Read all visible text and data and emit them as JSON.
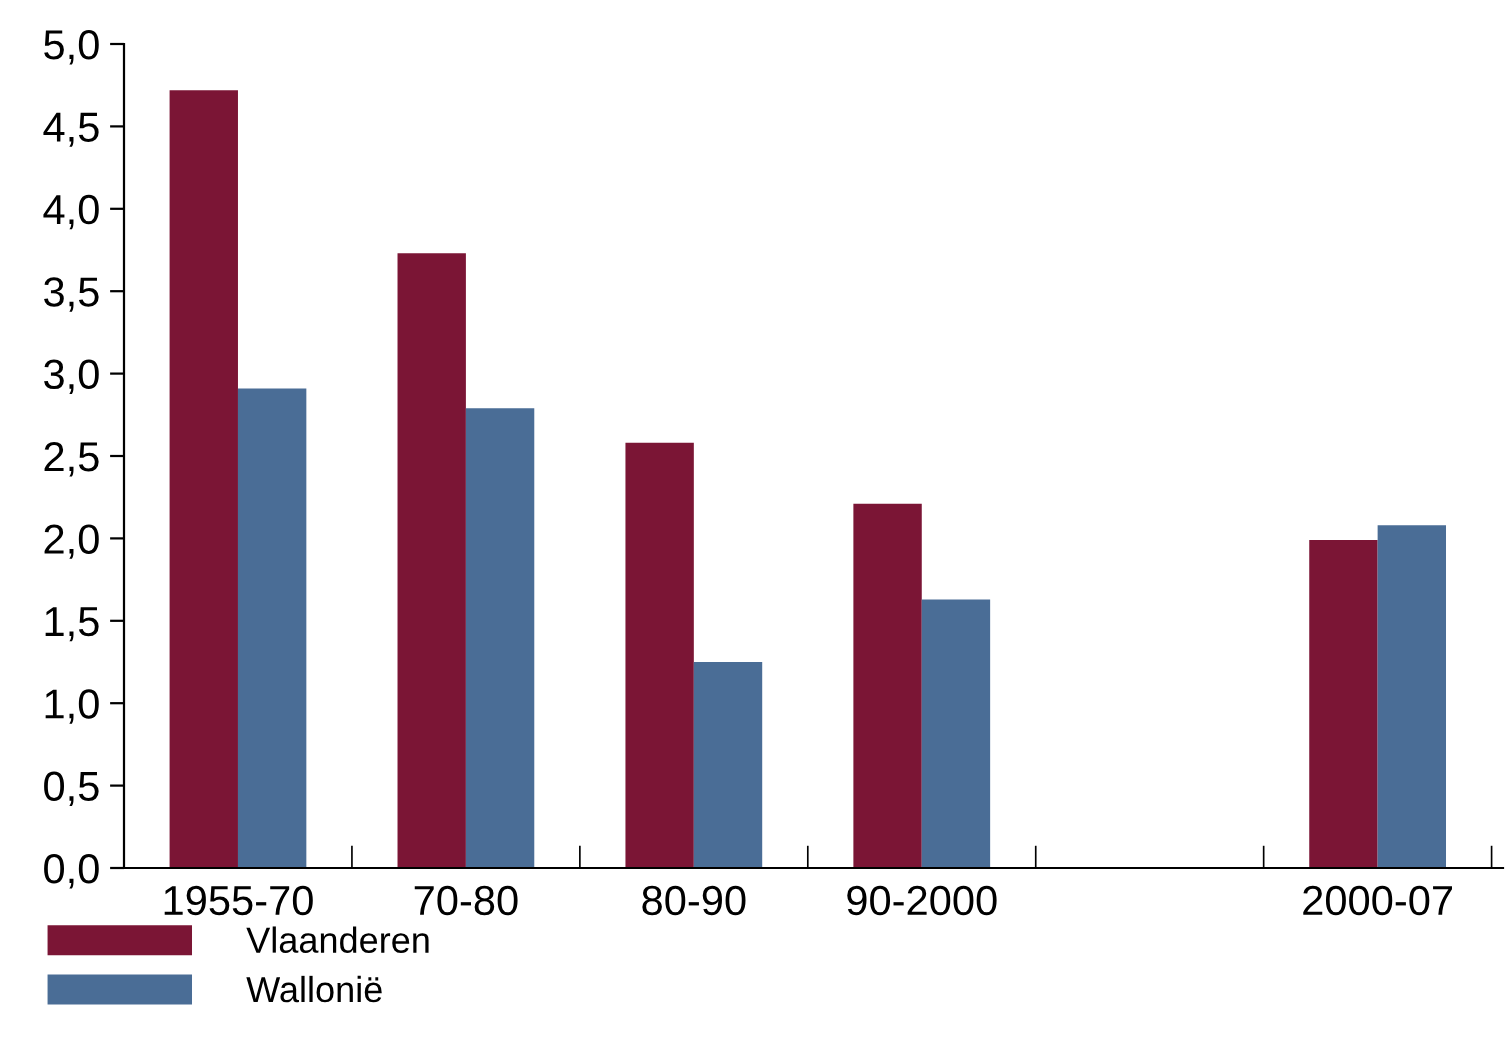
{
  "chart_data": {
    "type": "bar",
    "categories": [
      "1955-70",
      "70-80",
      "80-90",
      "90-2000",
      null,
      "2000-07"
    ],
    "series": [
      {
        "name": "Vlaanderen",
        "color": "#7b1535",
        "values": [
          4.72,
          3.73,
          2.58,
          2.21,
          null,
          1.99
        ]
      },
      {
        "name": "Wallonië",
        "color": "#4a6d96",
        "values": [
          2.91,
          2.79,
          1.25,
          1.63,
          null,
          2.08
        ]
      }
    ],
    "ylim": [
      0,
      5
    ],
    "yticks": [
      {
        "value": 0,
        "label": "0,0"
      },
      {
        "value": 0.5,
        "label": "0,5"
      },
      {
        "value": 1,
        "label": "1,0"
      },
      {
        "value": 1.5,
        "label": "1,5"
      },
      {
        "value": 2,
        "label": "2,0"
      },
      {
        "value": 2.5,
        "label": "2,5"
      },
      {
        "value": 3,
        "label": "3,0"
      },
      {
        "value": 3.5,
        "label": "3,5"
      },
      {
        "value": 4,
        "label": "4,0"
      },
      {
        "value": 4.5,
        "label": "4,5"
      },
      {
        "value": 5,
        "label": "5,0"
      }
    ],
    "grid": false,
    "legend": "bottom left"
  }
}
